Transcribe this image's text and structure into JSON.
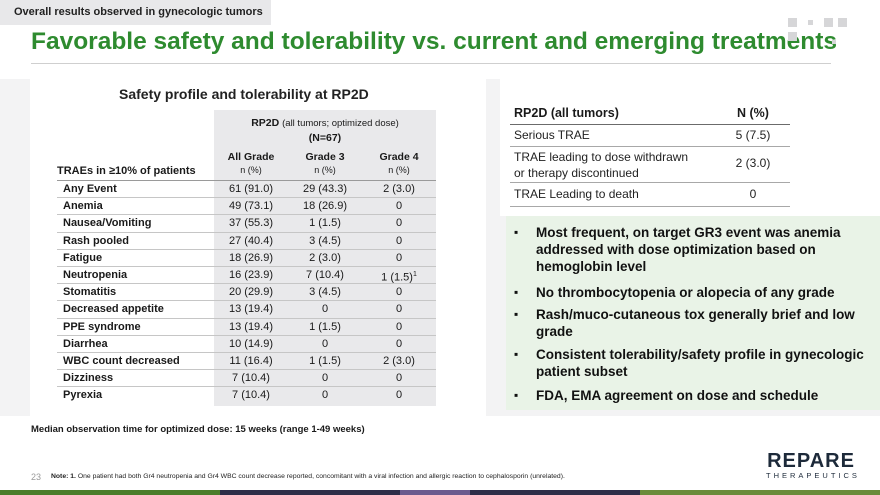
{
  "header": {
    "section_tag": "Overall results observed in gynecologic tumors",
    "title": "Favorable safety and tolerability vs. current and emerging treatments"
  },
  "safety_table": {
    "title": "Safety profile and tolerability at RP2D",
    "group_header_line1": "RP2D",
    "group_header_paren": "(all tumors; optimized dose)",
    "group_header_line2": "(N=67)",
    "row_header": "TRAEs in ≥10% of patients",
    "columns": [
      {
        "name": "All Grade",
        "sub": "n (%)"
      },
      {
        "name": "Grade 3",
        "sub": "n (%)"
      },
      {
        "name": "Grade 4",
        "sub": "n (%)"
      }
    ],
    "rows": [
      {
        "label": "Any Event",
        "all": "61 (91.0)",
        "g3": "29 (43.3)",
        "g4": "2 (3.0)"
      },
      {
        "label": "Anemia",
        "all": "49 (73.1)",
        "g3": "18 (26.9)",
        "g4": "0"
      },
      {
        "label": "Nausea/Vomiting",
        "all": "37 (55.3)",
        "g3": "1 (1.5)",
        "g4": "0"
      },
      {
        "label": "Rash pooled",
        "all": "27 (40.4)",
        "g3": "3 (4.5)",
        "g4": "0"
      },
      {
        "label": "Fatigue",
        "all": "18 (26.9)",
        "g3": "2 (3.0)",
        "g4": "0"
      },
      {
        "label": "Neutropenia",
        "all": "16 (23.9)",
        "g3": "7 (10.4)",
        "g4": "1 (1.5)",
        "g4_sup": "1"
      },
      {
        "label": "Stomatitis",
        "all": "20 (29.9)",
        "g3": "3 (4.5)",
        "g4": "0"
      },
      {
        "label": "Decreased appetite",
        "all": "13 (19.4)",
        "g3": "0",
        "g4": "0"
      },
      {
        "label": "PPE syndrome",
        "all": "13 (19.4)",
        "g3": "1 (1.5)",
        "g4": "0"
      },
      {
        "label": "Diarrhea",
        "all": "10 (14.9)",
        "g3": "0",
        "g4": "0"
      },
      {
        "label": "WBC count decreased",
        "all": "11 (16.4)",
        "g3": "1 (1.5)",
        "g4": "2 (3.0)"
      },
      {
        "label": "Dizziness",
        "all": "7 (10.4)",
        "g3": "0",
        "g4": "0"
      },
      {
        "label": "Pyrexia",
        "all": "7 (10.4)",
        "g3": "0",
        "g4": "0"
      }
    ]
  },
  "observation": "Median observation time for optimized dose: 15 weeks (range 1-49 weeks)",
  "summary_table": {
    "head_label": "RP2D (all tumors)",
    "head_value": "N (%)",
    "rows": [
      {
        "label_line1": "Serious TRAE",
        "label_line2": "",
        "value": "5 (7.5)"
      },
      {
        "label_line1": "TRAE leading to dose withdrawn",
        "label_line2": "or therapy discontinued",
        "value": "2 (3.0)"
      },
      {
        "label_line1": "TRAE Leading to death",
        "label_line2": "",
        "value": "0"
      }
    ]
  },
  "bullets": [
    "Most frequent, on target GR3 event was anemia addressed with dose optimization based on hemoglobin level",
    "No thrombocytopenia or alopecia of any grade",
    "Rash/muco-cutaneous tox generally brief and low grade",
    "Consistent tolerability/safety profile in gynecologic patient subset",
    "FDA, EMA agreement on dose and schedule"
  ],
  "footer": {
    "page_number": "23",
    "note_label": "Note: 1.",
    "note_text": "One patient had  both Gr4 neutropenia and Gr4 WBC count decrease reported, concomitant with a viral infection and allergic reaction to cephalosporin (unrelated).",
    "logo_main": "REPARE",
    "logo_sub": "THERAPEUTICS"
  },
  "colors": {
    "title_green": "#2e8b2f",
    "bullet_bg": "#e9f3e7",
    "table_shade": "#e9e9eb",
    "footer_segments": [
      "#4a7d2a",
      "#2e2e48",
      "#2e2e48",
      "#6b5a8e",
      "#6a8b3a"
    ]
  }
}
